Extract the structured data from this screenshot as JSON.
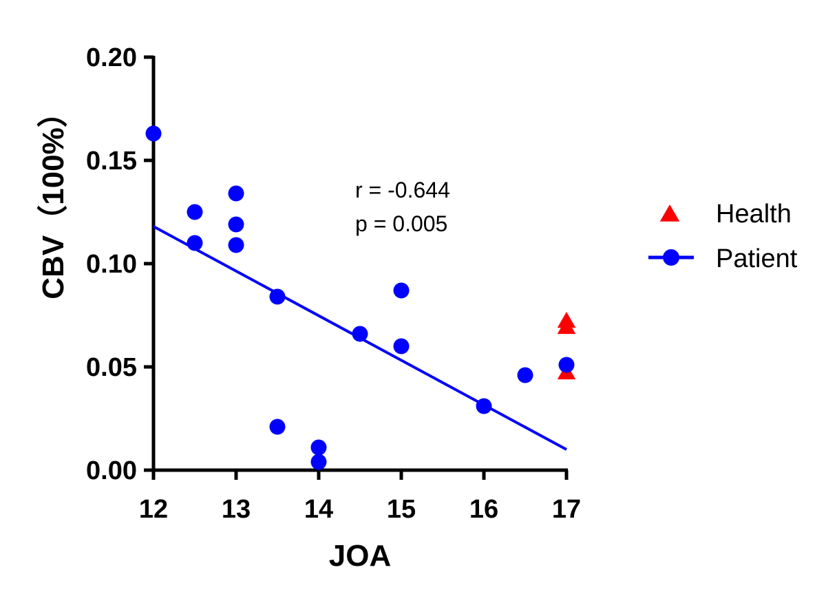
{
  "chart_data": {
    "type": "scatter",
    "title": "",
    "xlabel": "JOA",
    "ylabel": "CBV（100%）",
    "xlim": [
      12,
      17
    ],
    "ylim": [
      0,
      0.2
    ],
    "x_ticks": [
      12,
      13,
      14,
      15,
      16,
      17
    ],
    "y_ticks": [
      0,
      0.05,
      0.1,
      0.15,
      0.2
    ],
    "x_tick_labels": [
      "12",
      "13",
      "14",
      "15",
      "16",
      "17"
    ],
    "y_tick_labels": [
      "0.00",
      "0.05",
      "0.10",
      "0.15",
      "0.20"
    ],
    "grid": false,
    "legend_position": "right",
    "annotations": [
      "r = -0.644",
      "p = 0.005"
    ],
    "series": [
      {
        "name": "Health",
        "marker": "triangle",
        "color": "#ff0000",
        "points": [
          {
            "x": 17,
            "y": 0.072
          },
          {
            "x": 17,
            "y": 0.069
          },
          {
            "x": 17,
            "y": 0.047
          }
        ]
      },
      {
        "name": "Patient",
        "marker": "circle",
        "color": "#0000ff",
        "points": [
          {
            "x": 12,
            "y": 0.163
          },
          {
            "x": 12.5,
            "y": 0.125
          },
          {
            "x": 12.5,
            "y": 0.11
          },
          {
            "x": 13,
            "y": 0.134
          },
          {
            "x": 13,
            "y": 0.119
          },
          {
            "x": 13,
            "y": 0.109
          },
          {
            "x": 13.5,
            "y": 0.084
          },
          {
            "x": 13.5,
            "y": 0.021
          },
          {
            "x": 14,
            "y": 0.011
          },
          {
            "x": 14,
            "y": 0.004
          },
          {
            "x": 14.5,
            "y": 0.066
          },
          {
            "x": 15,
            "y": 0.087
          },
          {
            "x": 15,
            "y": 0.06
          },
          {
            "x": 16,
            "y": 0.031
          },
          {
            "x": 16.5,
            "y": 0.046
          },
          {
            "x": 17,
            "y": 0.051
          }
        ],
        "fit_line": {
          "x": [
            12,
            17
          ],
          "y": [
            0.118,
            0.01
          ]
        }
      }
    ]
  }
}
